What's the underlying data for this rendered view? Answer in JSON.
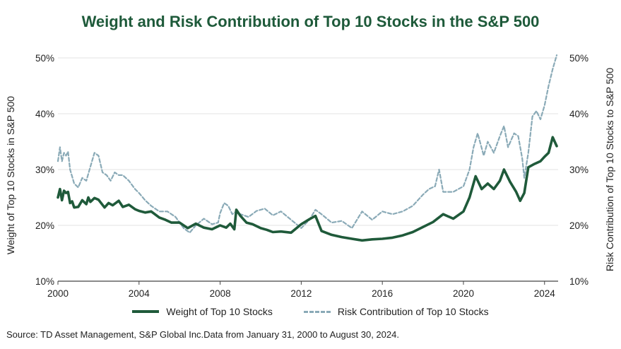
{
  "chart_data": {
    "type": "line",
    "title": "Weight and Risk Contribution of Top 10 Stocks in the S&P 500",
    "ylabel_left": "Weight of Top 10 Stocks in S&P 500",
    "ylabel_right": "Risk Contribution of Top 10 Stocks to S&P 500",
    "xlim": [
      2000,
      2024.67
    ],
    "ylim": [
      10,
      50
    ],
    "y_ticks": [
      "10%",
      "20%",
      "30%",
      "40%",
      "50%"
    ],
    "y_tick_values": [
      10,
      20,
      30,
      40,
      50
    ],
    "x_ticks": [
      "2000",
      "2004",
      "2008",
      "2012",
      "2016",
      "2020",
      "2024"
    ],
    "x_tick_values": [
      2000,
      2004,
      2008,
      2012,
      2016,
      2020,
      2024
    ],
    "grid": "horizontal",
    "legend_position": "bottom",
    "series": [
      {
        "name": "Weight of Top 10 Stocks",
        "color": "#1f5a3a",
        "style": "solid",
        "x": [
          2000.0,
          2000.1,
          2000.2,
          2000.3,
          2000.4,
          2000.5,
          2000.6,
          2000.7,
          2000.8,
          2001.0,
          2001.2,
          2001.4,
          2001.5,
          2001.6,
          2001.8,
          2002.0,
          2002.3,
          2002.5,
          2002.7,
          2003.0,
          2003.2,
          2003.5,
          2003.8,
          2004.0,
          2004.3,
          2004.6,
          2005.0,
          2005.3,
          2005.6,
          2006.0,
          2006.4,
          2006.8,
          2007.2,
          2007.6,
          2008.0,
          2008.3,
          2008.5,
          2008.7,
          2008.8,
          2009.0,
          2009.3,
          2009.6,
          2010.0,
          2010.3,
          2010.6,
          2011.0,
          2011.5,
          2012.0,
          2012.4,
          2012.7,
          2013.0,
          2013.5,
          2014.0,
          2014.5,
          2015.0,
          2015.5,
          2016.0,
          2016.5,
          2017.0,
          2017.5,
          2018.0,
          2018.5,
          2019.0,
          2019.5,
          2020.0,
          2020.3,
          2020.6,
          2020.9,
          2021.2,
          2021.5,
          2021.8,
          2022.0,
          2022.3,
          2022.6,
          2022.8,
          2023.0,
          2023.2,
          2023.5,
          2023.8,
          2024.0,
          2024.2,
          2024.4,
          2024.6
        ],
        "values": [
          25.0,
          26.5,
          24.5,
          26.2,
          25.8,
          26.0,
          24.0,
          24.3,
          23.2,
          23.3,
          24.5,
          23.8,
          25.0,
          24.2,
          24.9,
          24.6,
          23.2,
          24.0,
          23.6,
          24.4,
          23.3,
          23.7,
          22.9,
          22.6,
          22.3,
          22.5,
          21.4,
          21.0,
          20.5,
          20.5,
          19.5,
          20.3,
          19.6,
          19.3,
          20.0,
          19.6,
          20.3,
          19.3,
          22.8,
          21.7,
          20.5,
          20.2,
          19.5,
          19.2,
          18.8,
          18.9,
          18.7,
          20.2,
          21.1,
          21.7,
          19.0,
          18.3,
          17.9,
          17.6,
          17.3,
          17.5,
          17.6,
          17.8,
          18.2,
          18.8,
          19.7,
          20.6,
          22.0,
          21.2,
          22.5,
          25.0,
          28.8,
          26.5,
          27.5,
          26.5,
          28.0,
          30.0,
          27.8,
          26.0,
          24.4,
          25.8,
          30.4,
          31.0,
          31.5,
          32.3,
          33.0,
          35.8,
          34.2
        ]
      },
      {
        "name": "Risk Contribution of Top 10 Stocks",
        "color": "#8aaab7",
        "style": "dashed",
        "x": [
          2000.0,
          2000.1,
          2000.2,
          2000.3,
          2000.4,
          2000.5,
          2000.6,
          2000.8,
          2001.0,
          2001.2,
          2001.4,
          2001.6,
          2001.8,
          2002.0,
          2002.2,
          2002.4,
          2002.6,
          2002.8,
          2003.0,
          2003.2,
          2003.5,
          2003.8,
          2004.0,
          2004.3,
          2004.6,
          2005.0,
          2005.4,
          2005.8,
          2006.2,
          2006.5,
          2006.8,
          2007.2,
          2007.6,
          2007.9,
          2008.0,
          2008.2,
          2008.4,
          2008.6,
          2008.8,
          2009.0,
          2009.4,
          2009.8,
          2010.2,
          2010.6,
          2011.0,
          2011.5,
          2012.0,
          2012.4,
          2012.7,
          2013.0,
          2013.5,
          2014.0,
          2014.5,
          2015.0,
          2015.5,
          2016.0,
          2016.5,
          2017.0,
          2017.5,
          2018.0,
          2018.3,
          2018.6,
          2018.8,
          2019.0,
          2019.5,
          2020.0,
          2020.3,
          2020.5,
          2020.7,
          2021.0,
          2021.2,
          2021.5,
          2021.8,
          2022.0,
          2022.2,
          2022.5,
          2022.7,
          2022.9,
          2023.0,
          2023.2,
          2023.4,
          2023.6,
          2023.8,
          2024.0,
          2024.2,
          2024.4,
          2024.6
        ],
        "values": [
          31.5,
          34.0,
          31.5,
          33.0,
          32.5,
          33.2,
          30.0,
          27.5,
          26.8,
          28.5,
          28.0,
          30.5,
          33.0,
          32.5,
          29.5,
          29.0,
          28.0,
          29.5,
          29.0,
          29.0,
          28.0,
          26.5,
          25.8,
          24.5,
          23.5,
          22.5,
          22.5,
          21.5,
          19.5,
          18.7,
          20.0,
          21.2,
          20.2,
          20.5,
          22.2,
          24.0,
          23.5,
          22.0,
          22.5,
          22.0,
          21.5,
          22.6,
          23.0,
          21.8,
          22.5,
          21.0,
          19.5,
          21.0,
          22.8,
          22.0,
          20.5,
          20.8,
          19.5,
          22.5,
          21.0,
          22.5,
          22.0,
          22.5,
          23.5,
          25.5,
          26.5,
          27.0,
          30.0,
          26.0,
          26.0,
          27.0,
          30.0,
          34.0,
          36.5,
          32.5,
          35.0,
          33.0,
          36.0,
          37.8,
          34.0,
          36.5,
          36.0,
          32.0,
          28.5,
          33.0,
          39.5,
          40.5,
          39.0,
          41.5,
          45.0,
          48.0,
          50.5
        ]
      }
    ],
    "source_note": "Source: TD Asset Management, S&P Global Inc.Data from January 31, 2000 to August 30, 2024."
  }
}
